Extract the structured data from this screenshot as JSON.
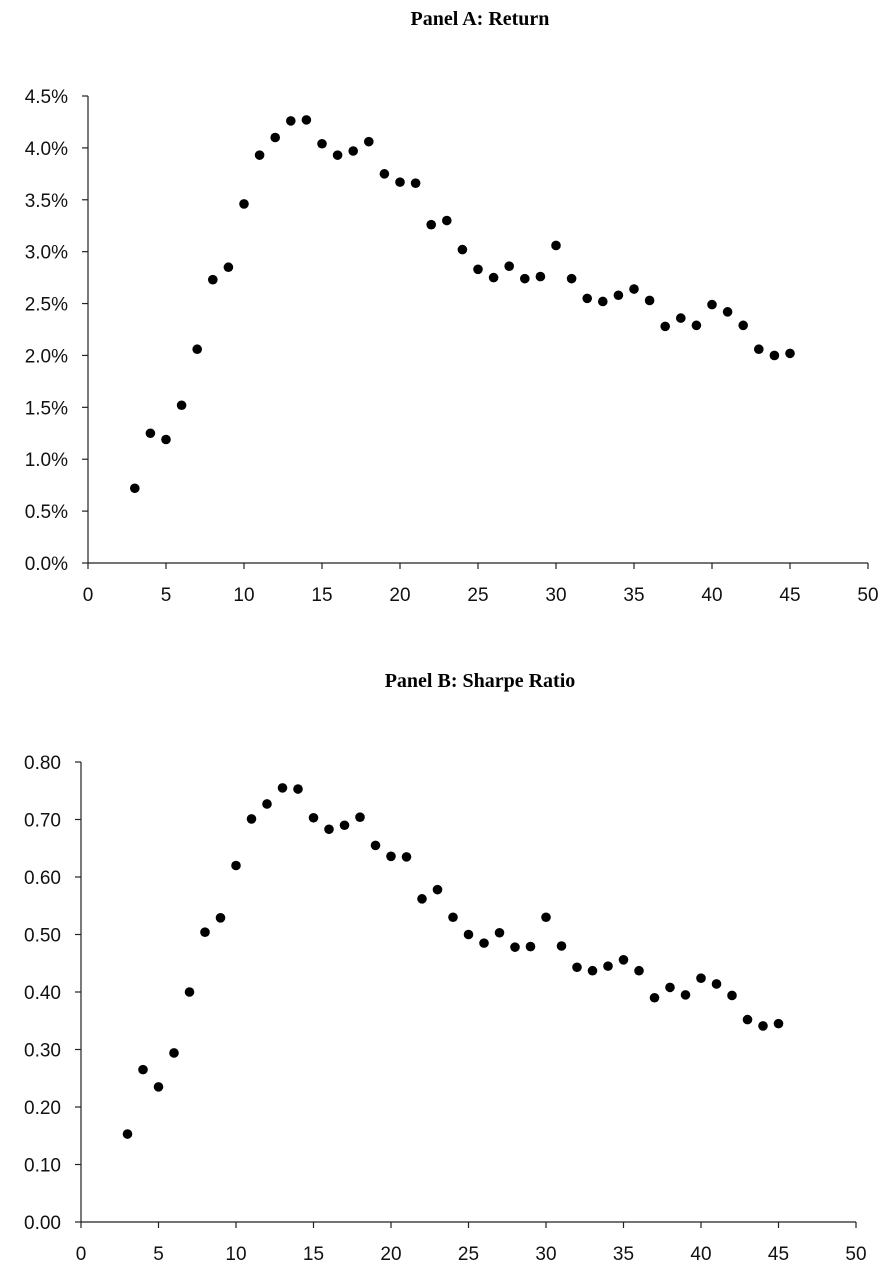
{
  "chart_data": [
    {
      "type": "scatter",
      "title": "Panel A: Return",
      "xlabel": "",
      "ylabel": "",
      "xlim": [
        0,
        50
      ],
      "ylim": [
        0.0,
        4.5
      ],
      "x_ticks": [
        "0",
        "5",
        "10",
        "15",
        "20",
        "25",
        "30",
        "35",
        "40",
        "45",
        "50"
      ],
      "y_ticks": [
        "0.0%",
        "0.5%",
        "1.0%",
        "1.5%",
        "2.0%",
        "2.5%",
        "3.0%",
        "3.5%",
        "4.0%",
        "4.5%"
      ],
      "grid": false,
      "marker_color": "#000000",
      "x": [
        3,
        4,
        5,
        6,
        7,
        8,
        9,
        10,
        11,
        12,
        13,
        14,
        15,
        16,
        17,
        18,
        19,
        20,
        21,
        22,
        23,
        24,
        25,
        26,
        27,
        28,
        29,
        30,
        31,
        32,
        33,
        34,
        35,
        36,
        37,
        38,
        39,
        40,
        41,
        42,
        43,
        44,
        45
      ],
      "y": [
        0.72,
        1.25,
        1.19,
        1.52,
        2.06,
        2.73,
        2.85,
        3.46,
        3.93,
        4.1,
        4.26,
        4.27,
        4.04,
        3.93,
        3.97,
        4.06,
        3.75,
        3.67,
        3.66,
        3.26,
        3.3,
        3.02,
        2.83,
        2.75,
        2.86,
        2.74,
        2.76,
        3.06,
        2.74,
        2.55,
        2.52,
        2.58,
        2.64,
        2.53,
        2.28,
        2.36,
        2.29,
        2.49,
        2.42,
        2.29,
        2.06,
        2.0,
        2.02
      ]
    },
    {
      "type": "scatter",
      "title": "Panel B: Sharpe Ratio",
      "xlabel": "",
      "ylabel": "",
      "xlim": [
        0,
        50
      ],
      "ylim": [
        0.0,
        0.8
      ],
      "x_ticks": [
        "0",
        "5",
        "10",
        "15",
        "20",
        "25",
        "30",
        "35",
        "40",
        "45",
        "50"
      ],
      "y_ticks": [
        "0.00",
        "0.10",
        "0.20",
        "0.30",
        "0.40",
        "0.50",
        "0.60",
        "0.70",
        "0.80"
      ],
      "grid": false,
      "marker_color": "#000000",
      "x": [
        3,
        4,
        5,
        6,
        7,
        8,
        9,
        10,
        11,
        12,
        13,
        14,
        15,
        16,
        17,
        18,
        19,
        20,
        21,
        22,
        23,
        24,
        25,
        26,
        27,
        28,
        29,
        30,
        31,
        32,
        33,
        34,
        35,
        36,
        37,
        38,
        39,
        40,
        41,
        42,
        43,
        44,
        45
      ],
      "y": [
        0.153,
        0.265,
        0.235,
        0.294,
        0.4,
        0.504,
        0.529,
        0.62,
        0.701,
        0.727,
        0.755,
        0.753,
        0.703,
        0.683,
        0.69,
        0.704,
        0.655,
        0.636,
        0.635,
        0.562,
        0.578,
        0.53,
        0.5,
        0.485,
        0.503,
        0.478,
        0.479,
        0.53,
        0.48,
        0.443,
        0.437,
        0.445,
        0.456,
        0.437,
        0.39,
        0.408,
        0.395,
        0.424,
        0.414,
        0.394,
        0.352,
        0.341,
        0.345
      ]
    }
  ]
}
